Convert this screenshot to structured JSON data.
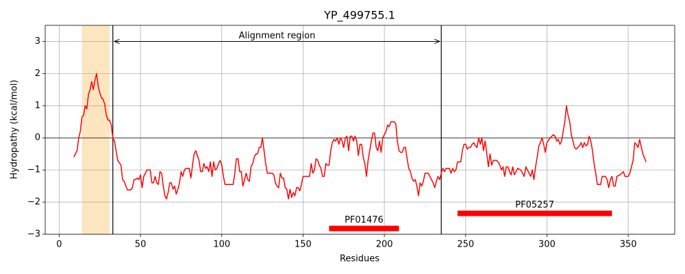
{
  "chart_data": {
    "type": "line",
    "title": "YP_499755.1",
    "x_label": "Residues",
    "y_label": "Hydropathy (kcal/mol)",
    "series": [
      {
        "color": "red",
        "x": [
          9,
          11,
          12,
          13,
          14,
          15,
          16,
          17,
          18,
          19,
          20,
          21,
          22,
          23,
          24,
          25,
          26,
          27,
          28,
          29,
          30,
          31,
          32,
          33,
          34,
          35,
          36,
          38,
          39,
          40,
          41,
          42,
          44,
          45,
          46,
          47,
          48,
          49,
          50,
          51,
          52,
          54,
          55,
          56,
          57,
          58,
          59,
          60,
          61,
          62,
          63,
          64,
          65,
          66,
          67,
          68,
          69,
          70,
          71,
          72,
          73,
          74,
          75,
          76,
          77,
          78,
          80,
          81,
          82,
          83,
          84,
          85,
          86,
          87,
          88,
          89,
          90,
          91,
          92,
          93,
          94,
          95,
          96,
          97,
          98,
          99,
          100,
          101,
          102,
          106,
          107,
          108,
          109,
          110,
          111,
          112,
          113,
          114,
          115,
          116,
          117,
          118,
          119,
          120,
          121,
          122,
          123,
          124,
          125,
          126,
          127,
          128,
          130,
          131,
          132,
          133,
          134,
          135,
          136,
          137,
          138,
          139,
          140,
          141,
          142,
          143,
          144,
          145,
          146,
          147,
          148,
          149,
          150,
          154,
          155,
          156,
          157,
          158,
          159,
          160,
          161,
          162,
          163,
          164,
          165,
          166,
          167,
          168,
          169,
          170,
          171,
          172,
          173,
          174,
          175,
          176,
          177,
          178,
          179,
          180,
          181,
          182,
          183,
          184,
          185,
          186,
          187,
          188,
          189,
          190,
          191,
          192,
          193,
          194,
          195,
          196,
          197,
          198,
          199,
          201,
          202,
          203,
          204,
          206,
          207,
          208,
          209,
          210,
          211,
          212,
          213,
          214,
          215,
          216,
          217,
          218,
          219,
          220,
          221,
          222,
          223,
          224,
          225,
          227,
          228,
          229,
          230,
          231,
          232,
          233,
          234,
          235,
          236,
          237,
          238,
          240,
          241,
          242,
          243,
          244,
          245,
          247,
          248,
          249,
          250,
          251,
          252,
          253,
          254,
          255,
          256,
          257,
          258,
          259,
          260,
          261,
          262,
          263,
          264,
          265,
          266,
          267,
          268,
          269,
          270,
          271,
          272,
          273,
          274,
          275,
          276,
          277,
          278,
          279,
          280,
          282,
          284,
          286,
          287,
          288,
          290,
          291,
          292,
          293,
          294,
          295,
          296,
          297,
          298,
          299,
          300,
          302,
          304,
          305,
          306,
          307,
          308,
          309,
          310,
          311,
          312,
          313,
          314,
          315,
          316,
          317,
          318,
          319,
          320,
          321,
          322,
          323,
          324,
          325,
          326,
          327,
          328,
          329,
          330,
          331,
          333,
          334,
          336,
          337,
          338,
          339,
          340,
          341,
          342,
          343,
          345,
          347,
          348,
          350,
          351,
          353,
          354,
          355,
          356,
          357,
          359,
          361
        ],
        "values": [
          -0.6,
          -0.4,
          0.0,
          0.2,
          0.65,
          0.7,
          1.0,
          0.9,
          1.35,
          1.5,
          1.75,
          1.5,
          1.8,
          2.0,
          1.6,
          1.4,
          1.25,
          1.2,
          1.05,
          0.7,
          0.55,
          0.55,
          0.4,
          0.0,
          -0.1,
          -0.4,
          -0.7,
          -0.85,
          -1.3,
          -1.35,
          -1.5,
          -1.62,
          -1.62,
          -1.55,
          -1.3,
          -1.3,
          -1.25,
          -1.3,
          -1.15,
          -1.55,
          -1.2,
          -1.0,
          -1.0,
          -1.0,
          -1.4,
          -1.4,
          -1.2,
          -1.4,
          -1.45,
          -1.05,
          -1.1,
          -1.5,
          -1.8,
          -1.9,
          -1.7,
          -1.4,
          -1.4,
          -1.6,
          -1.5,
          -1.75,
          -1.6,
          -1.4,
          -1.05,
          -1.2,
          -1.0,
          -0.95,
          -0.95,
          -1.25,
          -0.85,
          -0.5,
          -0.4,
          -0.55,
          -0.7,
          -1.05,
          -1.05,
          -0.8,
          -0.95,
          -0.9,
          -1.05,
          -0.75,
          -1.2,
          -0.75,
          -1.0,
          -0.95,
          -0.8,
          -0.7,
          -0.85,
          -1.2,
          -1.45,
          -1.45,
          -1.45,
          -1.1,
          -0.65,
          -0.65,
          -1.05,
          -1.05,
          -1.5,
          -1.3,
          -1.1,
          -1.3,
          -1.35,
          -0.9,
          -0.8,
          -0.6,
          -0.5,
          -0.5,
          -0.3,
          -0.3,
          0.0,
          -0.4,
          -0.8,
          -1.1,
          -1.1,
          -1.1,
          -1.15,
          -1.4,
          -1.5,
          -1.55,
          -1.1,
          -1.25,
          -1.25,
          -1.55,
          -1.6,
          -1.9,
          -1.6,
          -1.85,
          -1.7,
          -1.8,
          -1.55,
          -1.55,
          -1.65,
          -1.45,
          -1.2,
          -1.2,
          -0.8,
          -1.1,
          -1.0,
          -0.65,
          -0.7,
          -0.85,
          -0.95,
          -1.2,
          -1.2,
          -0.8,
          -0.85,
          -0.85,
          -0.4,
          -0.15,
          -0.05,
          -0.1,
          0.0,
          -0.2,
          0.0,
          -0.1,
          -0.3,
          0.0,
          0.05,
          -0.4,
          0.05,
          0.05,
          -0.1,
          0.05,
          -0.1,
          -0.55,
          -0.2,
          -0.2,
          -0.6,
          -0.8,
          -1.2,
          -0.7,
          -0.4,
          -0.1,
          0.15,
          0.15,
          -0.3,
          -0.4,
          -0.1,
          -0.45,
          0.0,
          0.2,
          0.4,
          0.35,
          0.5,
          0.5,
          0.45,
          -0.1,
          -0.4,
          -0.45,
          -0.45,
          -0.3,
          -0.3,
          -0.65,
          -0.95,
          -1.05,
          -1.25,
          -1.35,
          -1.3,
          -1.5,
          -1.8,
          -1.4,
          -1.5,
          -1.35,
          -1.1,
          -1.1,
          -1.2,
          -1.3,
          -1.4,
          -1.55,
          -1.35,
          -1.2,
          -1.3,
          -1.1,
          -0.95,
          -1.05,
          -0.95,
          -0.95,
          -1.1,
          -0.95,
          -1.05,
          -1.0,
          -0.75,
          -0.75,
          -0.4,
          -0.2,
          -0.2,
          -0.35,
          -0.3,
          -0.3,
          -0.2,
          -0.15,
          -0.25,
          -0.3,
          0.0,
          -0.2,
          0.0,
          -0.4,
          -0.1,
          -0.5,
          -0.9,
          -0.5,
          -0.85,
          -0.7,
          -0.7,
          -0.7,
          -0.75,
          -0.85,
          -1.0,
          -0.9,
          -1.2,
          -0.9,
          -0.9,
          -1.05,
          -1.15,
          -0.9,
          -1.15,
          -0.95,
          -1.0,
          -1.2,
          -0.9,
          -1.0,
          -1.2,
          -1.0,
          -1.3,
          -0.9,
          -0.6,
          -0.25,
          -0.15,
          0.0,
          -0.2,
          -0.45,
          -0.15,
          0.0,
          0.1,
          0.05,
          -0.1,
          -0.05,
          -0.2,
          -0.1,
          0.2,
          0.5,
          1.0,
          0.7,
          0.5,
          0.1,
          -0.1,
          -0.3,
          -0.35,
          -0.3,
          -0.25,
          -0.15,
          -0.3,
          -0.15,
          -0.25,
          -0.2,
          0.05,
          -0.1,
          -0.4,
          -0.8,
          -1.1,
          -1.45,
          -1.45,
          -1.2,
          -1.2,
          -1.3,
          -1.55,
          -1.3,
          -1.2,
          -1.5,
          -1.5,
          -1.2,
          -1.15,
          -1.05,
          -1.2,
          -1.2,
          -1.1,
          -0.7,
          -0.15,
          -0.2,
          -0.3,
          -0.05,
          -0.5,
          -0.75
        ]
      }
    ],
    "xlim": [
      -8.6,
      378.6
    ],
    "ylim": [
      -3,
      3.5
    ],
    "xticks": [
      0,
      50,
      100,
      150,
      200,
      250,
      300,
      350
    ],
    "yticks": [
      {
        "value": -3,
        "label": "−3"
      },
      {
        "value": -2,
        "label": "−2"
      },
      {
        "value": -1,
        "label": "−1"
      },
      0,
      1,
      2,
      3
    ],
    "grid": true,
    "hline": 0,
    "shaded_region": {
      "x": [
        14,
        31
      ],
      "color": "#fde5bf"
    },
    "vlines": [
      33,
      235
    ],
    "arrow": {
      "text": "Alignment region",
      "x": [
        33,
        235
      ],
      "y": 3
    },
    "domains": [
      {
        "name": "PF01476",
        "x": [
          166,
          209
        ],
        "y": -2.82,
        "color": "red"
      },
      {
        "name": "PF05257",
        "x": [
          245,
          340
        ],
        "y": -2.35,
        "color": "red"
      }
    ]
  }
}
